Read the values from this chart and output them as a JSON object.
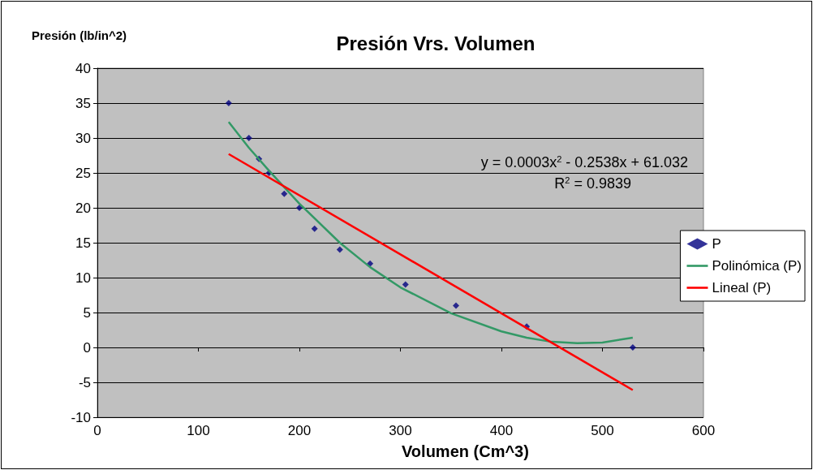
{
  "chart_data": {
    "type": "scatter",
    "title": "Presión Vrs. Volumen",
    "xlabel": "Volumen (Cm^3)",
    "ylabel": "Presión (lb/in^2)",
    "xlim": [
      0,
      600
    ],
    "xticks": [
      0,
      100,
      200,
      300,
      400,
      500,
      600
    ],
    "ylim": [
      -10,
      40
    ],
    "yticks": [
      -10,
      -5,
      0,
      5,
      10,
      15,
      20,
      25,
      30,
      35,
      40
    ],
    "grid": "y",
    "legend": "right",
    "annotations": [
      "y = 0.0003x$^{2}$ - 0.2538x + 61.032",
      "R$^{2}$ = 0.9839"
    ],
    "series": [
      {
        "name": "P",
        "marker": "diamond",
        "color": "#000080",
        "x": [
          130,
          150,
          160,
          170,
          185,
          200,
          215,
          240,
          270,
          305,
          355,
          425,
          530
        ],
        "values": [
          35,
          30,
          27,
          25,
          22,
          20,
          17,
          14,
          12,
          9,
          6,
          3,
          0
        ]
      },
      {
        "name": "Polinómica (P)",
        "type": "line",
        "marker": "none",
        "color": "#339966",
        "x": [
          130,
          150,
          170,
          200,
          240,
          270,
          300,
          350,
          400,
          425,
          450,
          475,
          500,
          530
        ],
        "values": [
          32.3,
          28.6,
          25.3,
          20.6,
          15,
          11.5,
          8.6,
          4.9,
          2.3,
          1.4,
          0.8,
          0.6,
          0.7,
          1.4
        ]
      },
      {
        "name": "Lineal (P)",
        "type": "line",
        "marker": "none",
        "color": "#ff0000",
        "x": [
          130,
          530
        ],
        "values": [
          27.7,
          -6.1
        ]
      }
    ]
  }
}
